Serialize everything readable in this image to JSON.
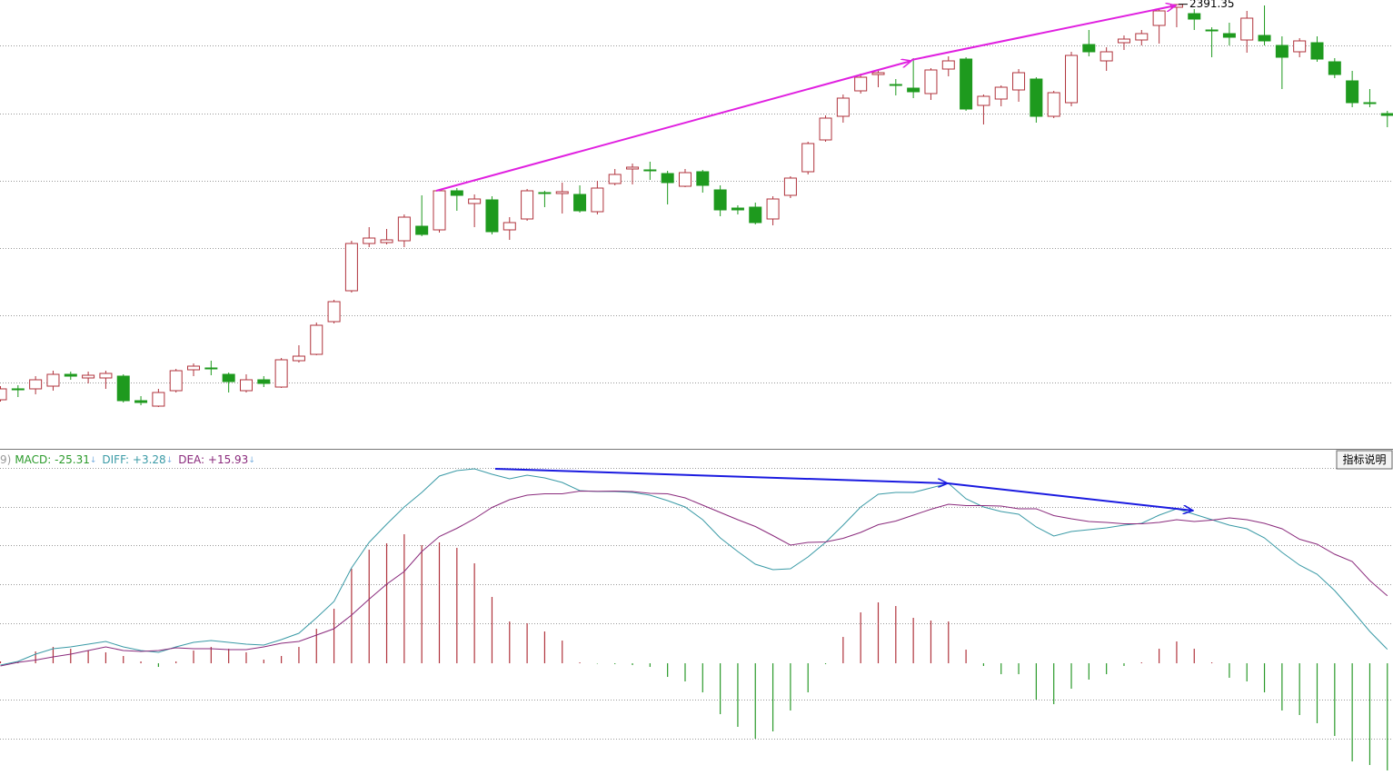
{
  "chart_data": [
    {
      "type": "candlestick",
      "ylim": [
        1901,
        2396
      ],
      "up_color": "#b0333c",
      "down_color": "#1e9a1e",
      "high_label_index": 67,
      "ohlc": [
        [
          1956,
          1971,
          1954,
          1968
        ],
        [
          1968,
          1972,
          1959,
          1967
        ],
        [
          1968,
          1982,
          1962,
          1978
        ],
        [
          1971,
          1988,
          1966,
          1984
        ],
        [
          1984,
          1987,
          1978,
          1982
        ],
        [
          1980,
          1987,
          1974,
          1983
        ],
        [
          1980,
          1988,
          1968,
          1985
        ],
        [
          1982,
          1984,
          1953,
          1955
        ],
        [
          1955,
          1960,
          1950,
          1953
        ],
        [
          1949,
          1968,
          1948,
          1964
        ],
        [
          1966,
          1990,
          1964,
          1988
        ],
        [
          1989,
          1996,
          1982,
          1993
        ],
        [
          1991,
          1999,
          1983,
          1990
        ],
        [
          1984,
          1986,
          1964,
          1976
        ],
        [
          1966,
          1984,
          1964,
          1978
        ],
        [
          1978,
          1982,
          1970,
          1974
        ],
        [
          1970,
          2002,
          1969,
          2000
        ],
        [
          1999,
          2016,
          1997,
          2004
        ],
        [
          2006,
          2041,
          2005,
          2038
        ],
        [
          2042,
          2066,
          2040,
          2064
        ],
        [
          2076,
          2131,
          2074,
          2128
        ],
        [
          2128,
          2146,
          2124,
          2134
        ],
        [
          2129,
          2144,
          2127,
          2132
        ],
        [
          2131,
          2160,
          2124,
          2157
        ],
        [
          2147,
          2181,
          2136,
          2138
        ],
        [
          2143,
          2188,
          2140,
          2186
        ],
        [
          2186,
          2189,
          2164,
          2181
        ],
        [
          2172,
          2182,
          2146,
          2177
        ],
        [
          2176,
          2180,
          2138,
          2141
        ],
        [
          2143,
          2157,
          2132,
          2151
        ],
        [
          2155,
          2188,
          2153,
          2186
        ],
        [
          2184,
          2186,
          2168,
          2183
        ],
        [
          2183,
          2195,
          2161,
          2185
        ],
        [
          2182,
          2192,
          2162,
          2164
        ],
        [
          2163,
          2197,
          2160,
          2189
        ],
        [
          2194,
          2210,
          2192,
          2204
        ],
        [
          2210,
          2216,
          2193,
          2212
        ],
        [
          2209,
          2218,
          2198,
          2208
        ],
        [
          2205,
          2208,
          2171,
          2195
        ],
        [
          2191,
          2210,
          2190,
          2206
        ],
        [
          2207,
          2209,
          2184,
          2192
        ],
        [
          2187,
          2192,
          2158,
          2165
        ],
        [
          2167,
          2170,
          2160,
          2165
        ],
        [
          2168,
          2173,
          2149,
          2151
        ],
        [
          2155,
          2180,
          2148,
          2177
        ],
        [
          2181,
          2202,
          2178,
          2200
        ],
        [
          2207,
          2240,
          2204,
          2238
        ],
        [
          2242,
          2269,
          2240,
          2266
        ],
        [
          2268,
          2292,
          2261,
          2288
        ],
        [
          2296,
          2315,
          2293,
          2311
        ],
        [
          2314,
          2320,
          2300,
          2316
        ],
        [
          2303,
          2309,
          2291,
          2302
        ],
        [
          2299,
          2332,
          2288,
          2295
        ],
        [
          2293,
          2321,
          2286,
          2319
        ],
        [
          2320,
          2334,
          2312,
          2329
        ],
        [
          2331,
          2333,
          2274,
          2276
        ],
        [
          2280,
          2292,
          2259,
          2290
        ],
        [
          2287,
          2302,
          2279,
          2300
        ],
        [
          2297,
          2320,
          2284,
          2316
        ],
        [
          2309,
          2311,
          2261,
          2268
        ],
        [
          2268,
          2296,
          2266,
          2294
        ],
        [
          2283,
          2339,
          2279,
          2335
        ],
        [
          2347,
          2363,
          2334,
          2339
        ],
        [
          2329,
          2344,
          2318,
          2339
        ],
        [
          2349,
          2357,
          2341,
          2353
        ],
        [
          2352,
          2363,
          2346,
          2359
        ],
        [
          2368,
          2386,
          2348,
          2384
        ],
        [
          2388,
          2391.35,
          2366,
          2391
        ],
        [
          2381,
          2386,
          2363,
          2375
        ],
        [
          2363,
          2366,
          2333,
          2362
        ],
        [
          2359,
          2371,
          2346,
          2355
        ],
        [
          2352,
          2384,
          2338,
          2376
        ],
        [
          2357,
          2390,
          2346,
          2351
        ],
        [
          2346,
          2356,
          2298,
          2333
        ],
        [
          2339,
          2354,
          2333,
          2351
        ],
        [
          2349,
          2356,
          2328,
          2331
        ],
        [
          2328,
          2332,
          2310,
          2314
        ],
        [
          2307,
          2318,
          2278,
          2283
        ],
        [
          2283,
          2298,
          2278,
          2282
        ],
        [
          2271,
          2274,
          2256,
          2269
        ]
      ]
    },
    {
      "type": "macd",
      "header": {
        "prefix": "9)",
        "items": [
          "MACD: -25.31",
          "DIFF: +3.28",
          "DEA: +15.93"
        ],
        "arrow": "↓"
      },
      "button": "指标说明",
      "ylim": [
        -26.39,
        50.43
      ],
      "series": [
        {
          "name": "DIFF",
          "color": "#3a9aa6",
          "values": [
            -0.43,
            0.43,
            2.15,
            3.43,
            3.86,
            4.51,
            5.15,
            3.86,
            3.0,
            2.58,
            3.86,
            4.94,
            5.36,
            4.94,
            4.51,
            4.29,
            5.58,
            7.08,
            10.73,
            14.59,
            22.53,
            28.54,
            32.83,
            36.91,
            40.34,
            44.21,
            45.49,
            45.92,
            44.64,
            43.56,
            44.42,
            43.78,
            42.7,
            40.77,
            40.56,
            40.56,
            40.34,
            39.7,
            38.41,
            36.91,
            33.91,
            29.61,
            26.39,
            23.39,
            22.1,
            22.32,
            25.11,
            28.54,
            32.62,
            36.91,
            39.91,
            40.34,
            40.34,
            41.42,
            42.49,
            38.84,
            36.91,
            35.84,
            35.19,
            32.19,
            30.04,
            31.12,
            31.55,
            31.97,
            32.62,
            33.05,
            34.98,
            36.48,
            35.19,
            33.91,
            32.62,
            31.76,
            29.61,
            26.18,
            23.18,
            21.03,
            17.17,
            12.45,
            7.51,
            3.28
          ]
        },
        {
          "name": "DEA",
          "color": "#8a2a7c",
          "values": [
            -0.65,
            0.22,
            0.76,
            1.5,
            2.15,
            3.01,
            3.86,
            3.0,
            2.79,
            3.01,
            3.65,
            3.44,
            3.43,
            3.23,
            3.22,
            3.86,
            4.72,
            5.15,
            6.66,
            8.15,
            11.37,
            15.13,
            18.67,
            21.68,
            26.39,
            29.94,
            31.87,
            34.12,
            36.81,
            38.63,
            39.7,
            40.03,
            40.02,
            40.67,
            40.61,
            40.67,
            40.56,
            40.13,
            40.02,
            39.06,
            37.35,
            35.62,
            33.9,
            32.3,
            30.15,
            27.9,
            28.55,
            28.65,
            29.51,
            30.9,
            32.72,
            33.58,
            34.98,
            36.38,
            37.56,
            37.23,
            37.23,
            37.13,
            36.48,
            36.48,
            34.87,
            34.13,
            33.48,
            33.26,
            32.94,
            32.95,
            33.27,
            33.91,
            33.48,
            33.81,
            34.34,
            33.91,
            33.05,
            31.76,
            29.3,
            28.11,
            25.76,
            24.04,
            19.53,
            15.93
          ]
        },
        {
          "name": "MACD",
          "up_color": "#b0333c",
          "down_color": "#2a9a2a",
          "values": [
            0.43,
            0.43,
            2.79,
            3.86,
            3.43,
            3.0,
            2.58,
            1.72,
            0.43,
            -0.86,
            0.43,
            3.0,
            3.86,
            3.43,
            2.58,
            0.86,
            1.72,
            3.86,
            8.15,
            12.88,
            22.32,
            26.82,
            28.33,
            30.47,
            27.9,
            28.54,
            27.25,
            23.61,
            15.67,
            9.87,
            9.44,
            7.51,
            5.36,
            0.21,
            -0.1,
            -0.21,
            -0.43,
            -0.86,
            -3.22,
            -4.29,
            -6.87,
            -12.02,
            -15.02,
            -17.81,
            -16.09,
            -11.16,
            -6.87,
            -0.21,
            6.22,
            12.02,
            14.38,
            13.52,
            10.73,
            10.09,
            9.87,
            3.22,
            -0.64,
            -2.58,
            -2.58,
            -8.58,
            -9.66,
            -6.01,
            -3.86,
            -2.58,
            -0.64,
            0.21,
            3.43,
            5.15,
            3.43,
            0.21,
            -3.43,
            -4.29,
            -6.87,
            -11.16,
            -12.23,
            -14.16,
            -17.17,
            -23.18,
            -24.03,
            -25.31
          ]
        }
      ]
    }
  ]
}
